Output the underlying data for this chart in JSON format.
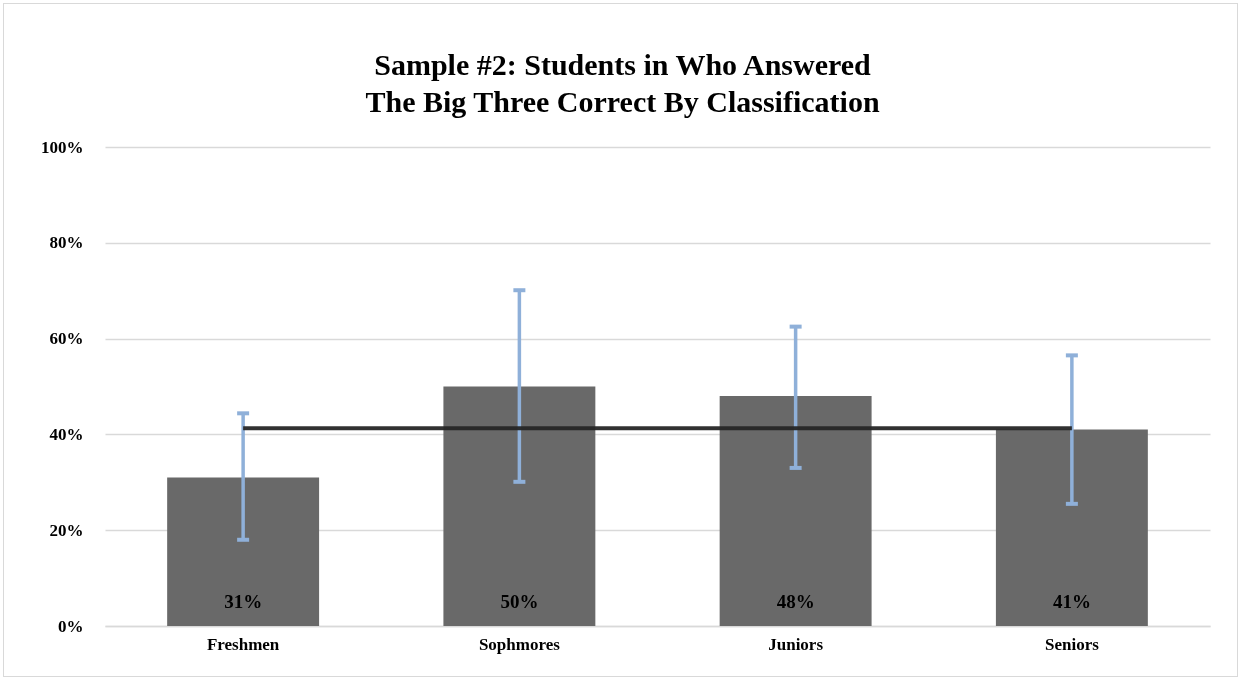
{
  "chart_data": {
    "type": "bar",
    "title": "Sample #2: Students in Who Answered\nThe Big Three Correct By Classification",
    "categories": [
      "Freshmen",
      "Sophmores",
      "Juniors",
      "Seniors"
    ],
    "series": [
      {
        "color": "#696969",
        "values": [
          31,
          50,
          48,
          41
        ],
        "errors": [
          [
            18,
            44.4
          ],
          [
            30.1,
            70.1
          ],
          [
            33,
            62.5
          ],
          [
            25.5,
            56.5
          ]
        ],
        "value_labels": [
          "31%",
          "50%",
          "48%",
          "41%"
        ]
      },
      {
        "type": "line",
        "color": "#262626",
        "values": [
          41.3,
          41.3,
          41.3,
          41.3
        ]
      }
    ],
    "ylim": [
      0,
      100
    ],
    "yticks": [
      {
        "value": 0,
        "label": "0%"
      },
      {
        "value": 20,
        "label": "20%"
      },
      {
        "value": 40,
        "label": "40%"
      },
      {
        "value": 60,
        "label": "60%"
      },
      {
        "value": 80,
        "label": "80%"
      },
      {
        "value": 100,
        "label": "100%"
      }
    ],
    "grid": "y",
    "marker": "none",
    "line_style": "solid"
  }
}
